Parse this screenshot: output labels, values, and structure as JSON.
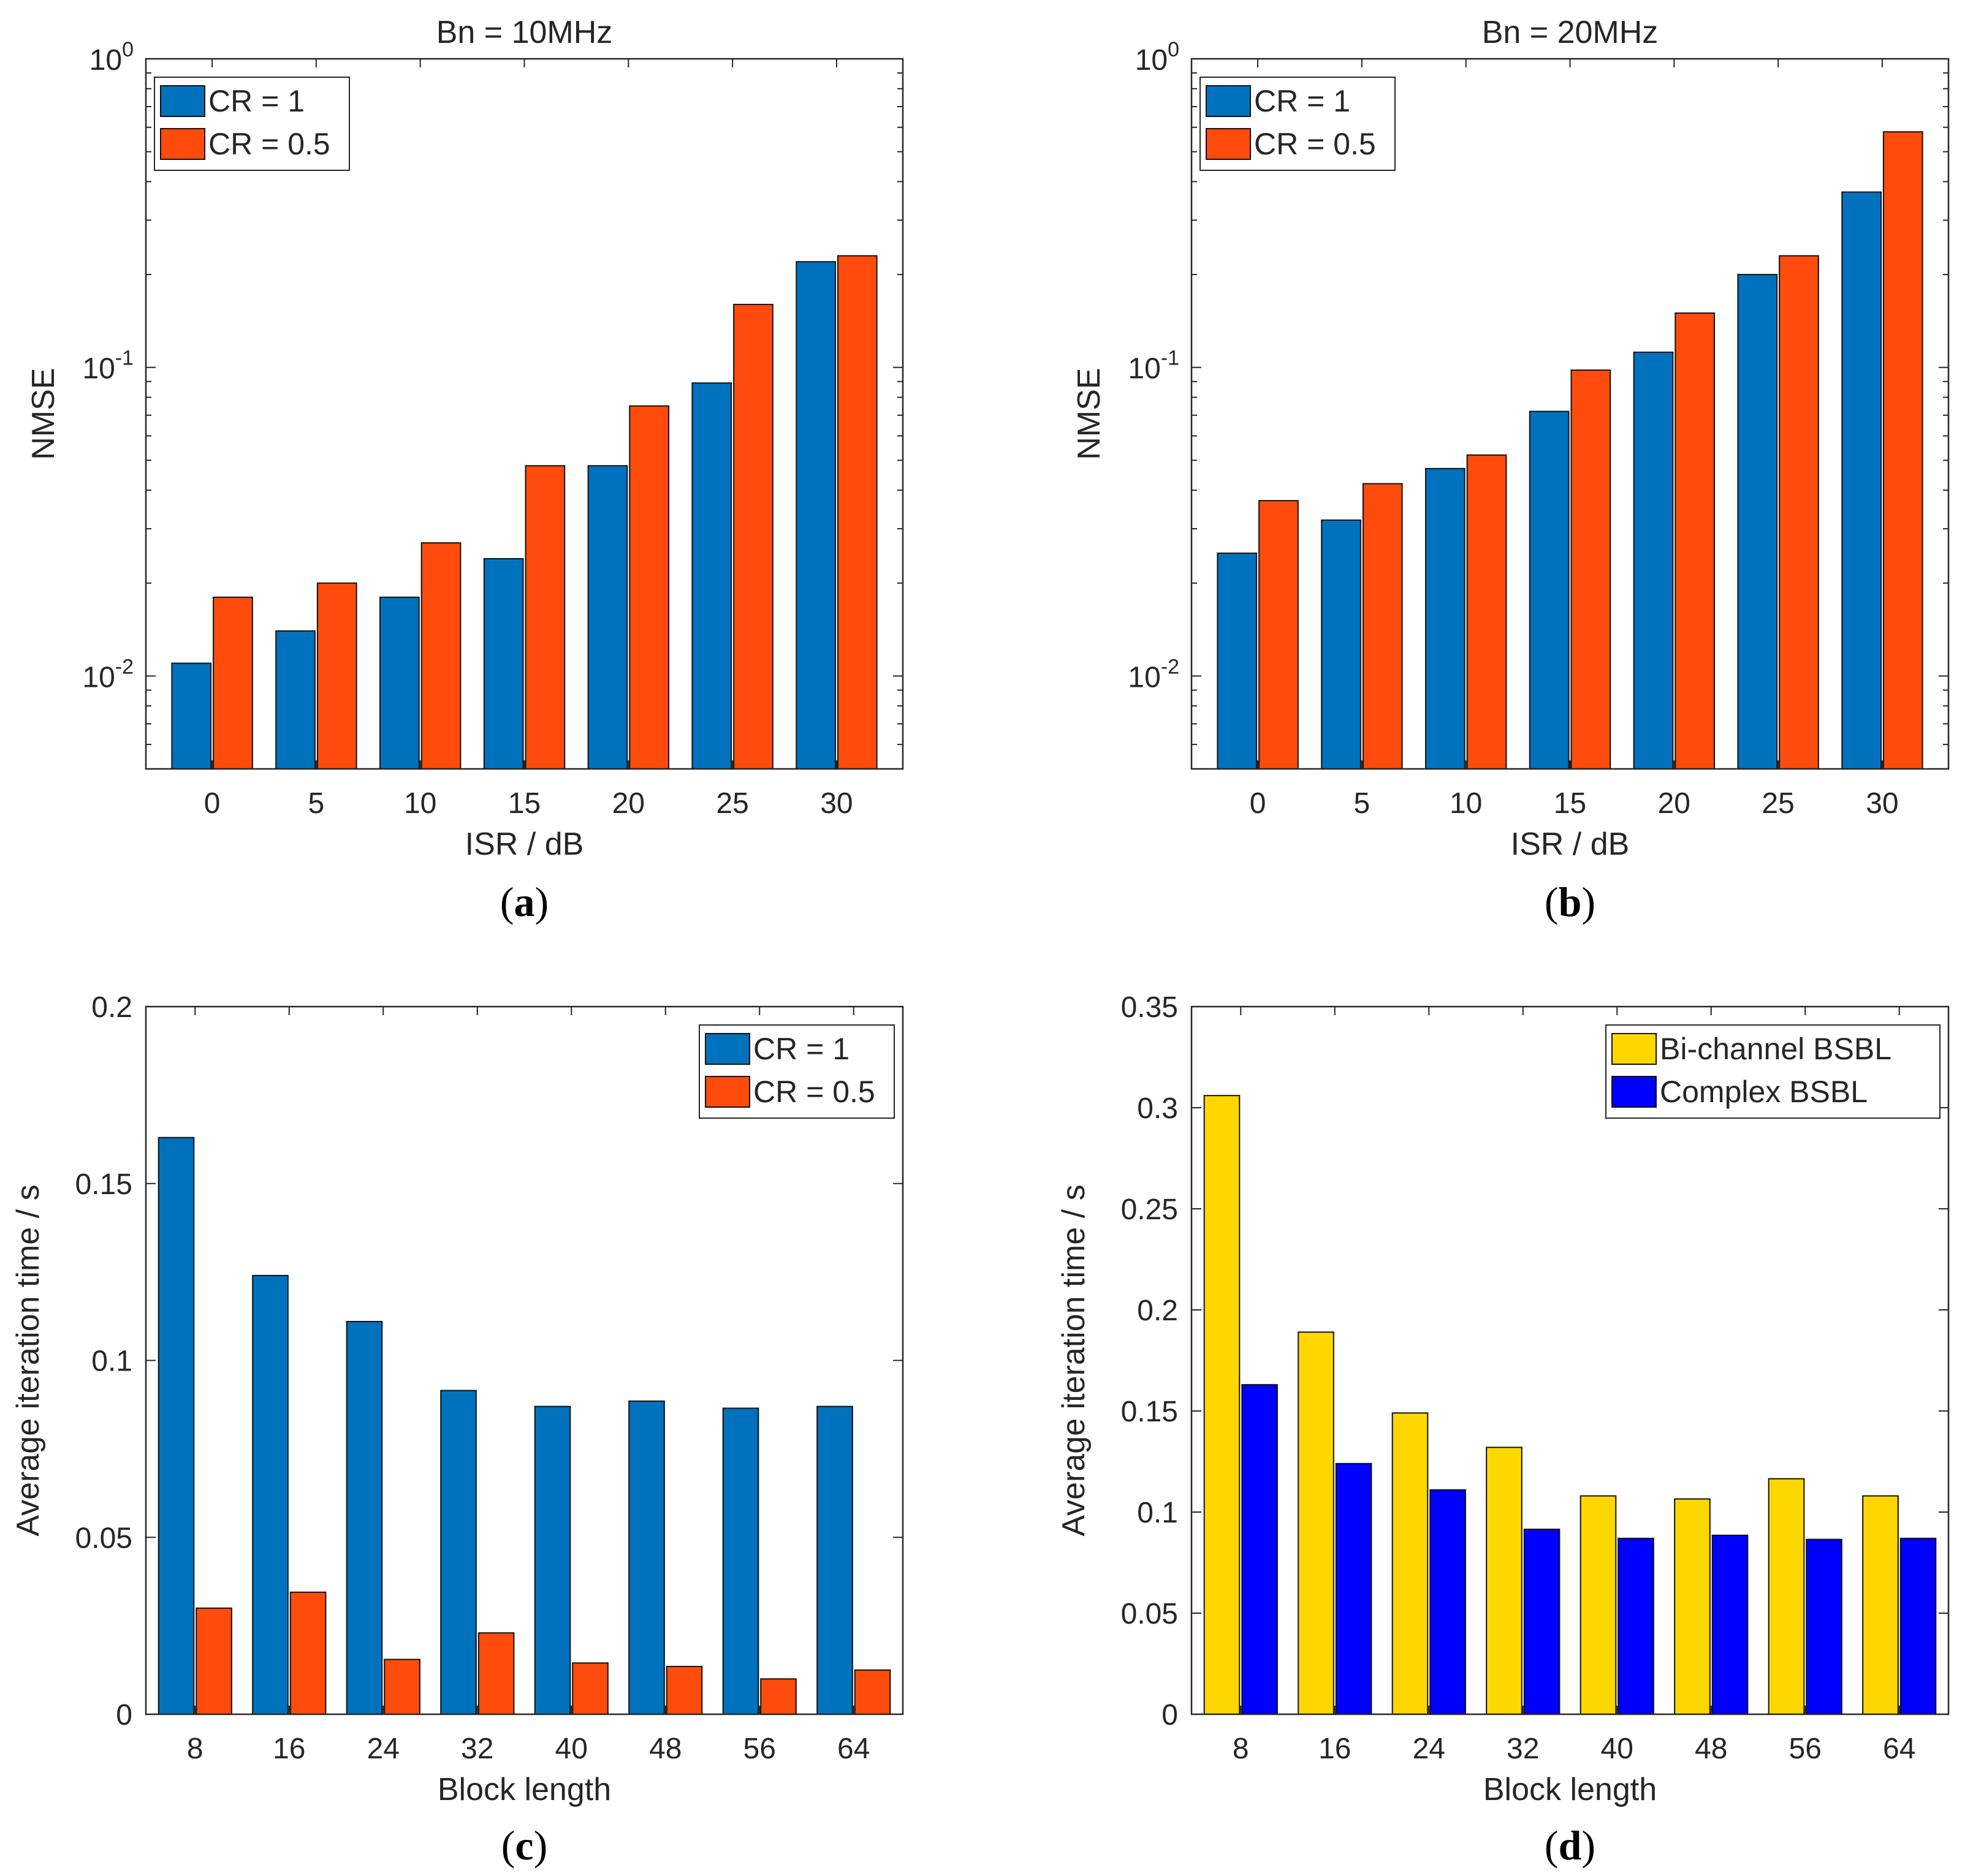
{
  "colors": {
    "cr1": "#0072BD",
    "cr05": "#FF4B0B",
    "bichannel": "#FFD700",
    "complex": "#0000FF",
    "axis": "#262626",
    "bar_edge": "#111111"
  },
  "chart_data": [
    {
      "id": "a",
      "type": "bar",
      "title": "Bn = 10MHz",
      "caption": "a",
      "xlabel": "ISR / dB",
      "ylabel": "NMSE",
      "yscale": "log",
      "ylim": [
        0.005,
        1
      ],
      "ytick_labels": [
        {
          "value": 0.01,
          "base": "10",
          "exp": "-2"
        },
        {
          "value": 0.1,
          "base": "10",
          "exp": "-1"
        },
        {
          "value": 1,
          "base": "10",
          "exp": "0"
        }
      ],
      "categories": [
        "0",
        "5",
        "10",
        "15",
        "20",
        "25",
        "30"
      ],
      "legend_position": "top-left",
      "series": [
        {
          "name": "CR = 1",
          "color_key": "cr1",
          "values": [
            0.011,
            0.014,
            0.018,
            0.024,
            0.048,
            0.089,
            0.22
          ]
        },
        {
          "name": "CR = 0.5",
          "color_key": "cr05",
          "values": [
            0.018,
            0.02,
            0.027,
            0.048,
            0.075,
            0.16,
            0.23
          ]
        }
      ]
    },
    {
      "id": "b",
      "type": "bar",
      "title": "Bn = 20MHz",
      "caption": "b",
      "xlabel": "ISR / dB",
      "ylabel": "NMSE",
      "yscale": "log",
      "ylim": [
        0.005,
        1
      ],
      "ytick_labels": [
        {
          "value": 0.01,
          "base": "10",
          "exp": "-2"
        },
        {
          "value": 0.1,
          "base": "10",
          "exp": "-1"
        },
        {
          "value": 1,
          "base": "10",
          "exp": "0"
        }
      ],
      "categories": [
        "0",
        "5",
        "10",
        "15",
        "20",
        "25",
        "30"
      ],
      "legend_position": "top-left",
      "series": [
        {
          "name": "CR = 1",
          "color_key": "cr1",
          "values": [
            0.025,
            0.032,
            0.047,
            0.072,
            0.112,
            0.2,
            0.37
          ]
        },
        {
          "name": "CR = 0.5",
          "color_key": "cr05",
          "values": [
            0.037,
            0.042,
            0.052,
            0.098,
            0.15,
            0.23,
            0.58
          ]
        }
      ]
    },
    {
      "id": "c",
      "type": "bar",
      "title": "",
      "caption": "c",
      "xlabel": "Block length",
      "ylabel": "Average iteration time / s",
      "yscale": "linear",
      "ylim": [
        0,
        0.2
      ],
      "yticks": [
        0,
        0.05,
        0.1,
        0.15,
        0.2
      ],
      "ytick_text": [
        "0",
        "0.05",
        "0.1",
        "0.15",
        "0.2"
      ],
      "categories": [
        "8",
        "16",
        "24",
        "32",
        "40",
        "48",
        "56",
        "64"
      ],
      "legend_position": "top-right",
      "series": [
        {
          "name": "CR = 1",
          "color_key": "cr1",
          "values": [
            0.163,
            0.124,
            0.111,
            0.0915,
            0.087,
            0.0885,
            0.0865,
            0.087
          ]
        },
        {
          "name": "CR = 0.5",
          "color_key": "cr05",
          "values": [
            0.03,
            0.0345,
            0.0155,
            0.023,
            0.0145,
            0.0135,
            0.01,
            0.0125
          ]
        }
      ]
    },
    {
      "id": "d",
      "type": "bar",
      "title": "",
      "caption": "d",
      "xlabel": "Block length",
      "ylabel": "Average iteration time / s",
      "yscale": "linear",
      "ylim": [
        0,
        0.35
      ],
      "yticks": [
        0,
        0.05,
        0.1,
        0.15,
        0.2,
        0.25,
        0.3,
        0.35
      ],
      "ytick_text": [
        "0",
        "0.05",
        "0.1",
        "0.15",
        "0.2",
        "0.25",
        "0.3",
        "0.35"
      ],
      "categories": [
        "8",
        "16",
        "24",
        "32",
        "40",
        "48",
        "56",
        "64"
      ],
      "legend_position": "top-right",
      "series": [
        {
          "name": "Bi-channel BSBL",
          "color_key": "bichannel",
          "values": [
            0.306,
            0.189,
            0.149,
            0.132,
            0.108,
            0.1065,
            0.1165,
            0.108
          ]
        },
        {
          "name": "Complex BSBL",
          "color_key": "complex",
          "values": [
            0.163,
            0.124,
            0.111,
            0.0915,
            0.087,
            0.0885,
            0.0865,
            0.087
          ]
        }
      ]
    }
  ]
}
